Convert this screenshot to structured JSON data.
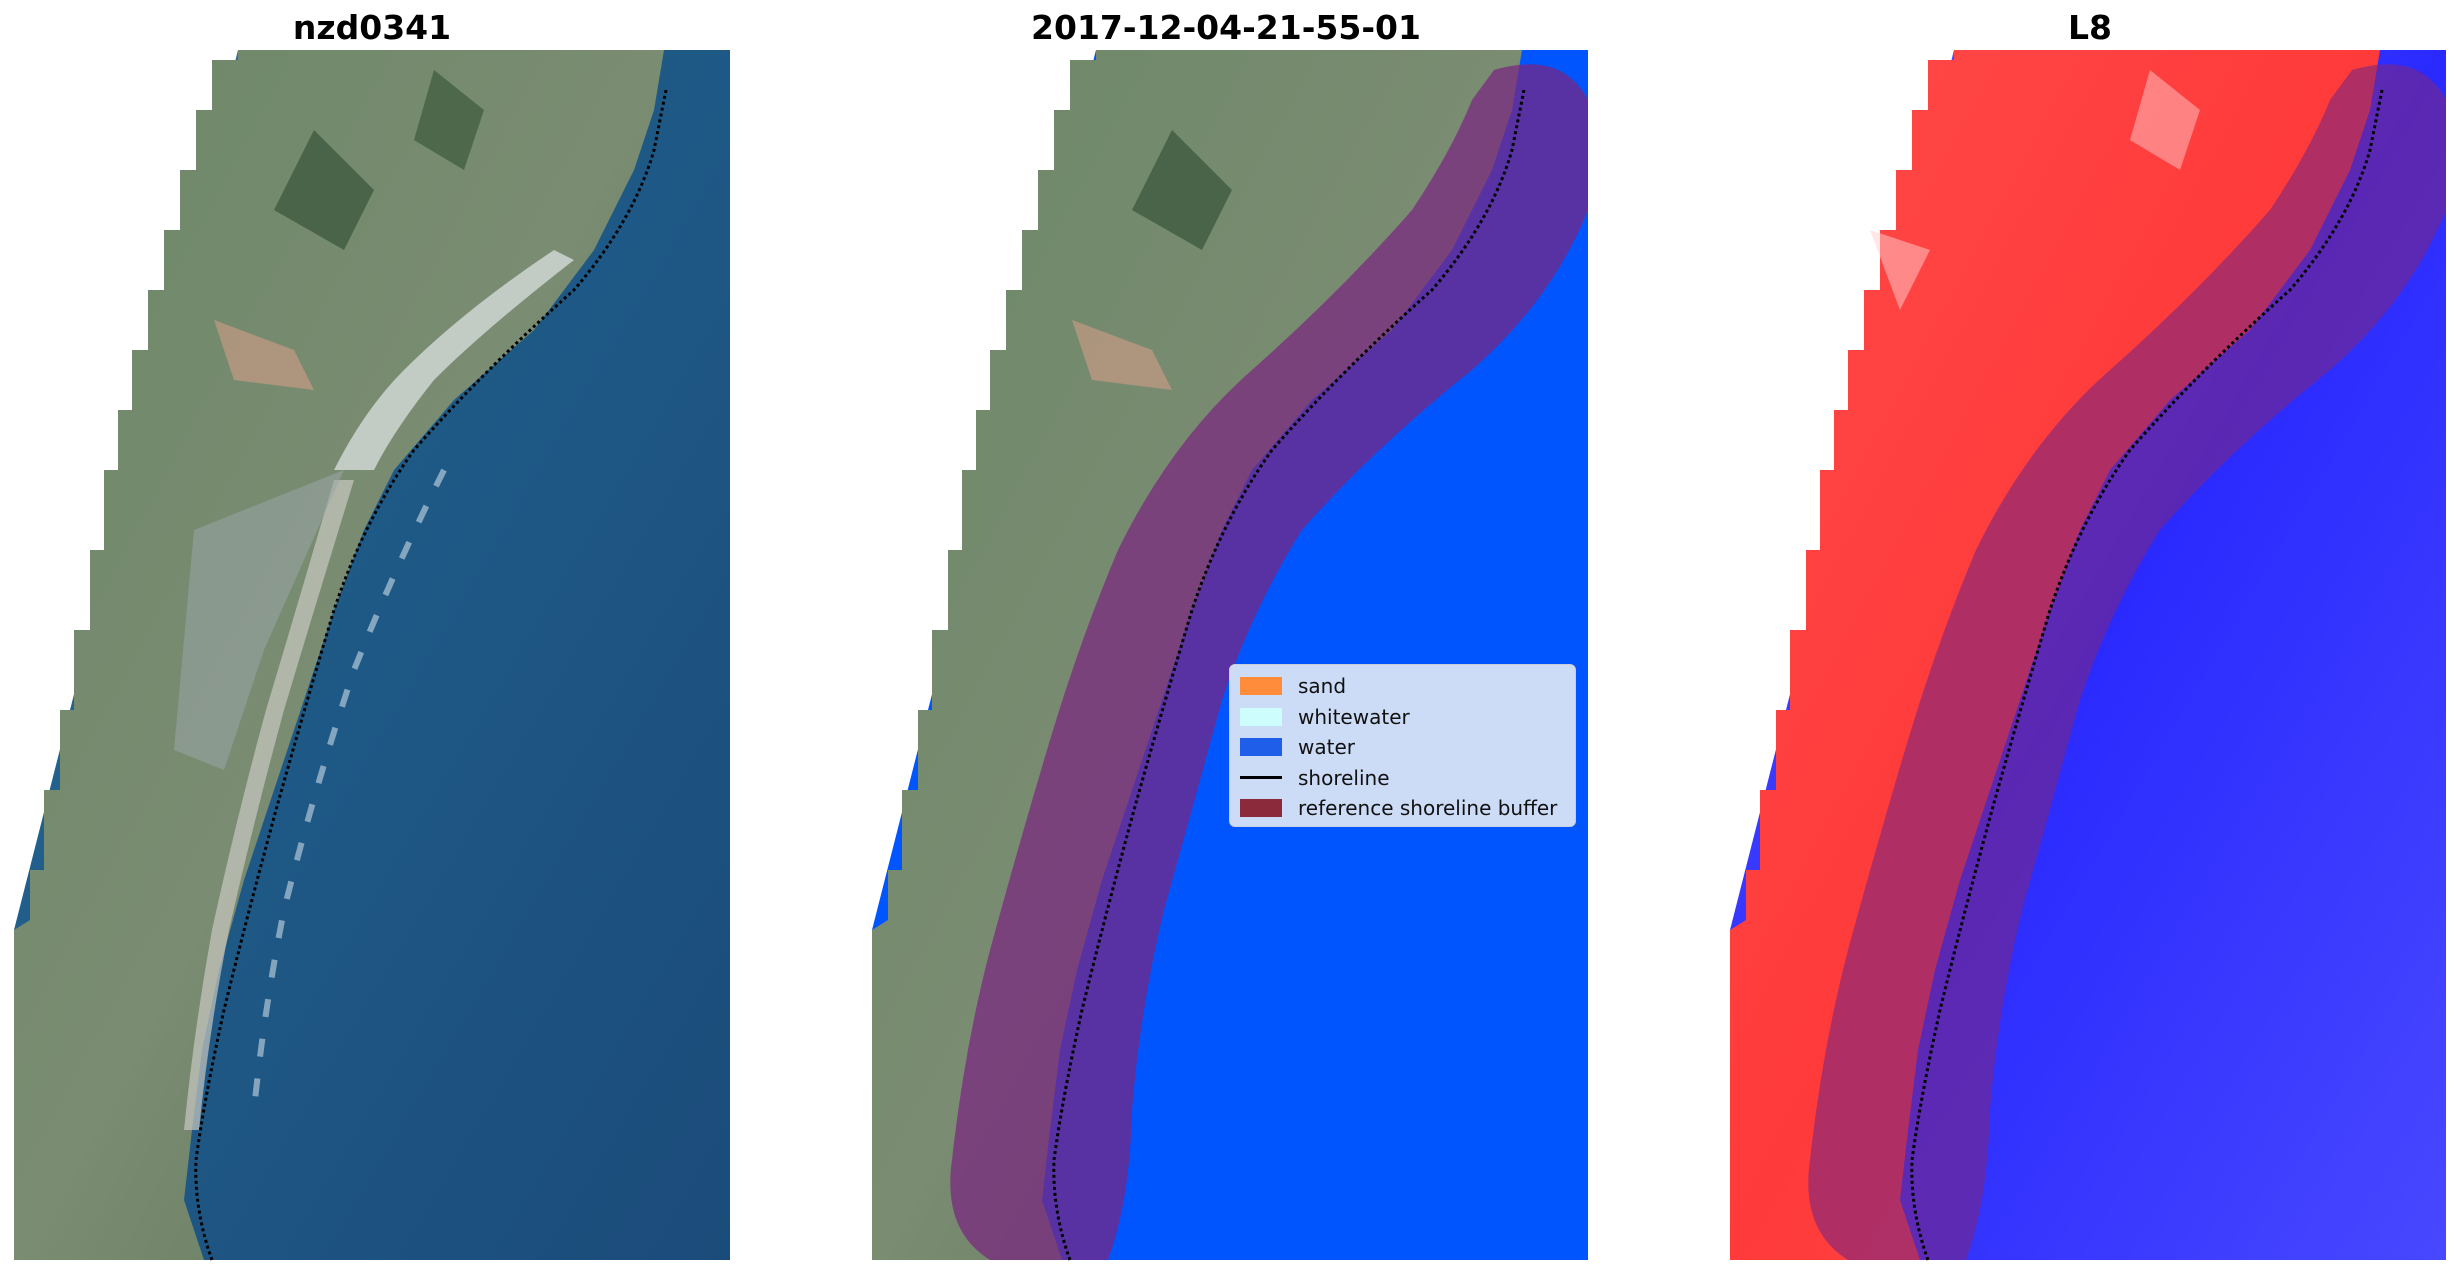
{
  "panels": [
    {
      "title": "nzd0341"
    },
    {
      "title": "2017-12-04-21-55-01"
    },
    {
      "title": "L8"
    }
  ],
  "legend": {
    "items": [
      {
        "label": "sand",
        "color": "#ff8c3a"
      },
      {
        "label": "whitewater",
        "color": "#cdfdfd"
      },
      {
        "label": "water",
        "color": "#1f5ee8"
      },
      {
        "label": "shoreline",
        "color": "#000000"
      },
      {
        "label": "reference shoreline buffer",
        "color": "#8a2a3a"
      }
    ]
  },
  "colors": {
    "land": "#5f7a58",
    "ocean": "#2f5f8c",
    "water_class": "#0055ff",
    "buffer": "#7a2680",
    "index_land": "#ff3a3a",
    "index_water": "#2a2aff"
  }
}
